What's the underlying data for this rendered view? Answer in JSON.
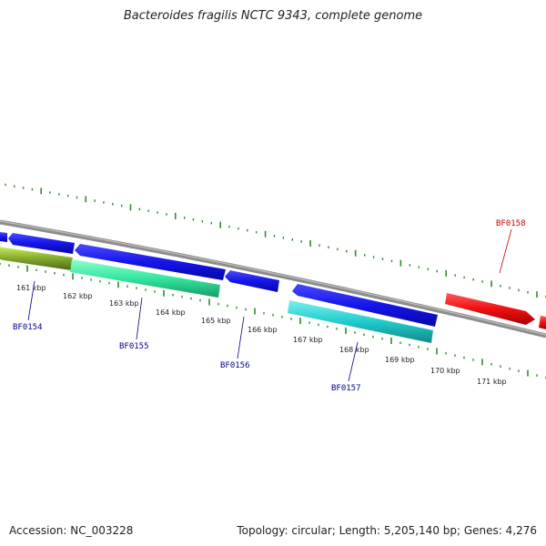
{
  "title": "Bacteroides fragilis NCTC 9343, complete genome",
  "footer": {
    "accession": "Accession: NC_003228",
    "summary": "Topology: circular; Length: 5,205,140 bp; Genes: 4,276"
  },
  "colors": {
    "backbone": "#8c8c8c",
    "ticks": "#2e8b2e",
    "gene_label_blue": "#00008b",
    "gene_label_red": "#cc0000"
  },
  "scale": {
    "unit": "kbp",
    "labels": [
      "161 kbp",
      "162 kbp",
      "163 kbp",
      "164 kbp",
      "165 kbp",
      "166 kbp",
      "167 kbp",
      "168 kbp",
      "169 kbp",
      "170 kbp",
      "171 kbp"
    ]
  },
  "features": [
    {
      "name": "BF0154",
      "color": "#7a9a2a",
      "strand": "-"
    },
    {
      "name": "BF0155",
      "color": "#33e6a0",
      "strand": "-"
    },
    {
      "name": "BF0156",
      "color": "#1a1aee",
      "strand": "-"
    },
    {
      "name": "BF0157",
      "color": "#22cccc",
      "strand": "-"
    },
    {
      "name": "BF0158",
      "color": "#ee1111",
      "strand": "+"
    }
  ]
}
